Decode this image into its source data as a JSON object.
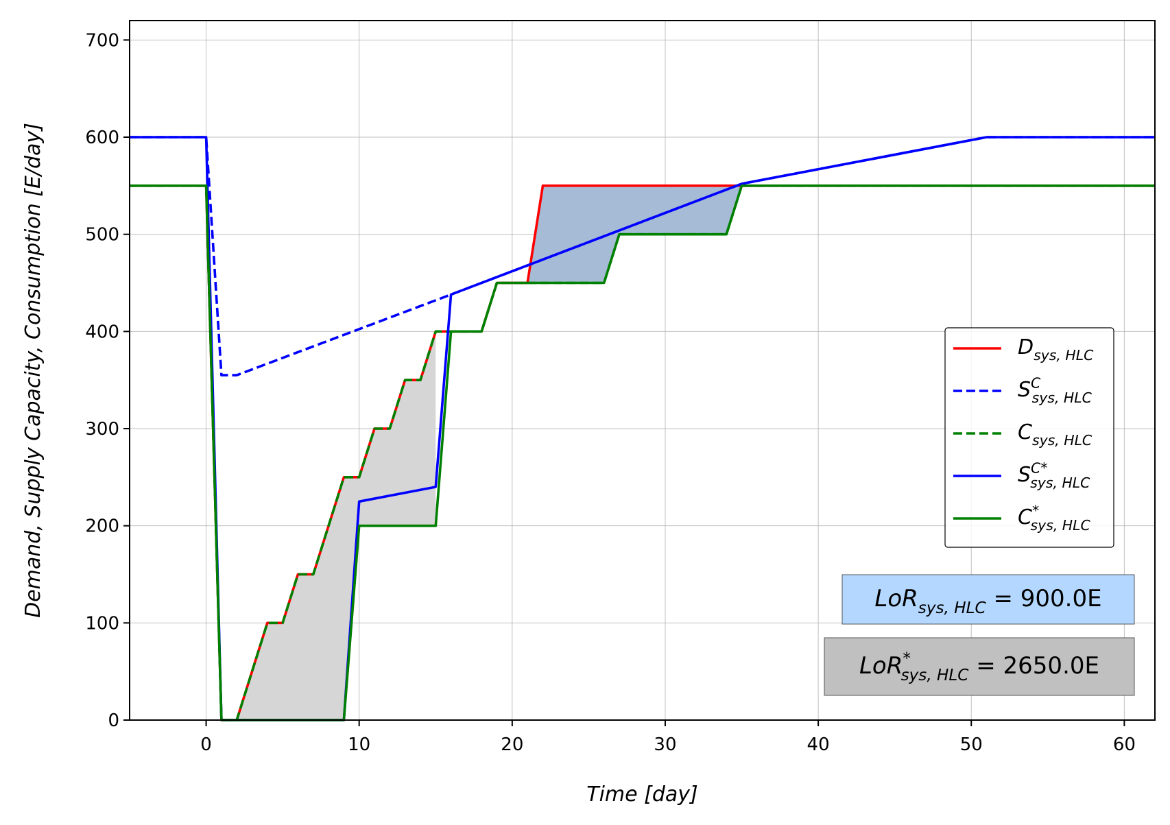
{
  "chart_data": {
    "type": "line",
    "xlabel": "Time [day]",
    "ylabel": "Demand, Supply Capacity, Consumption [E/day]",
    "xlim": [
      -5,
      62
    ],
    "ylim": [
      0,
      720
    ],
    "xticks": [
      0,
      10,
      20,
      30,
      40,
      50,
      60
    ],
    "yticks": [
      0,
      100,
      200,
      300,
      400,
      500,
      600,
      700
    ],
    "grid": true,
    "legend_position": "right",
    "colors": {
      "demand": "#ff0000",
      "supply": "#0000ff",
      "consumption": "#008000",
      "fill_blue": "#a6bcd6",
      "fill_gray": "#d6d6d6",
      "lor_box": "#b3d7ff",
      "lor_star_box": "#c0c0c0"
    },
    "series": [
      {
        "name": "D_sys,HLC",
        "legend": {
          "base": "D",
          "sub": "sys, HLC",
          "sup": ""
        },
        "color": "#ff0000",
        "style": "solid",
        "x": [
          -5,
          0,
          1,
          2,
          4,
          5,
          6,
          7,
          9,
          10,
          11,
          12,
          13,
          14,
          15,
          16,
          18,
          19,
          21,
          22,
          35,
          62
        ],
        "y": [
          550,
          550,
          0,
          0,
          100,
          100,
          150,
          150,
          250,
          250,
          300,
          300,
          350,
          350,
          400,
          400,
          400,
          450,
          450,
          550,
          550,
          550
        ]
      },
      {
        "name": "S^C_sys,HLC",
        "legend": {
          "base": "S",
          "sub": "sys, HLC",
          "sup": "C"
        },
        "color": "#0000ff",
        "style": "dashed",
        "x": [
          -5,
          0,
          1,
          2,
          16,
          35,
          51,
          62
        ],
        "y": [
          600,
          600,
          355,
          355,
          438,
          552,
          600,
          600
        ]
      },
      {
        "name": "C_sys,HLC",
        "legend": {
          "base": "C",
          "sub": "sys, HLC",
          "sup": ""
        },
        "color": "#008000",
        "style": "dashed",
        "x": [
          -5,
          0,
          1,
          2,
          4,
          5,
          6,
          7,
          9,
          10,
          11,
          12,
          13,
          14,
          15,
          16,
          18,
          19,
          21,
          26,
          27,
          34,
          35,
          62
        ],
        "y": [
          550,
          550,
          0,
          0,
          100,
          100,
          150,
          150,
          250,
          250,
          300,
          300,
          350,
          350,
          400,
          400,
          400,
          450,
          450,
          450,
          500,
          500,
          550,
          550
        ]
      },
      {
        "name": "S^C*_sys,HLC",
        "legend": {
          "base": "S",
          "sub": "sys, HLC",
          "sup": "C*"
        },
        "color": "#0000ff",
        "style": "solid",
        "x": [
          -5,
          0,
          1,
          9,
          10,
          15,
          16,
          35,
          51,
          62
        ],
        "y": [
          600,
          600,
          0,
          0,
          225,
          240,
          438,
          552,
          600,
          600
        ]
      },
      {
        "name": "C*_sys,HLC",
        "legend": {
          "base": "C",
          "sub": "sys, HLC",
          "sup": "*"
        },
        "color": "#008000",
        "style": "solid",
        "x": [
          -5,
          0,
          1,
          9,
          10,
          15,
          16,
          18,
          19,
          26,
          27,
          34,
          35,
          62
        ],
        "y": [
          550,
          550,
          0,
          0,
          200,
          200,
          400,
          400,
          450,
          450,
          500,
          500,
          550,
          550
        ]
      }
    ],
    "fills": [
      {
        "name": "loss-area-hlc",
        "color": "#a6bcd6",
        "x": [
          21,
          22,
          35,
          34,
          27,
          26,
          21
        ],
        "y": [
          450,
          550,
          550,
          500,
          500,
          450,
          450
        ]
      },
      {
        "name": "loss-area-hlc-star",
        "color": "#d6d6d6",
        "x": [
          2,
          4,
          5,
          6,
          7,
          9,
          10,
          11,
          12,
          13,
          14,
          15,
          15,
          10,
          9,
          2
        ],
        "y": [
          0,
          100,
          100,
          150,
          150,
          250,
          250,
          300,
          300,
          350,
          350,
          400,
          200,
          200,
          0,
          0
        ]
      }
    ],
    "annotations": [
      {
        "name": "lor",
        "base": "LoR",
        "sub": "sys, HLC",
        "sup": "",
        "rest": " = 900.0E",
        "box_color": "#b3d7ff"
      },
      {
        "name": "lor-star",
        "base": "LoR",
        "sub": "sys, HLC",
        "sup": "*",
        "rest": " = 2650.0E",
        "box_color": "#c0c0c0"
      }
    ]
  }
}
